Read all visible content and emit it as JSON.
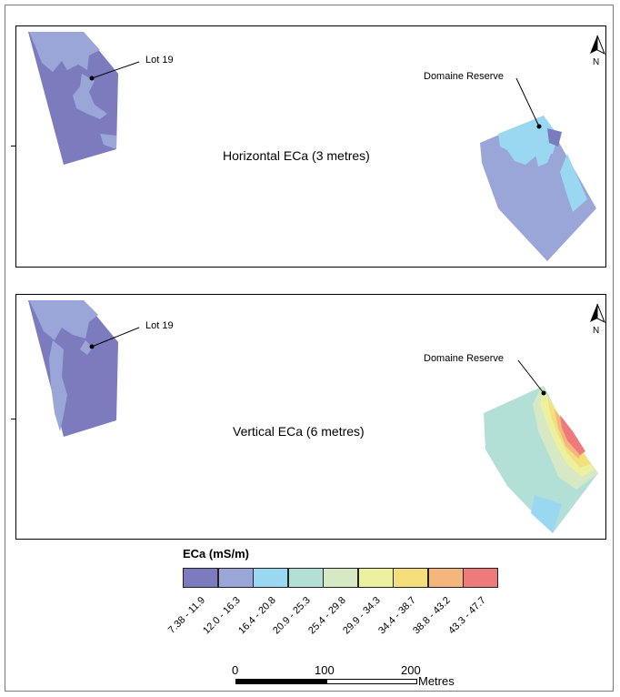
{
  "panels": [
    {
      "title": "Horizontal ECa (3 metres)",
      "lot_label": "Lot 19",
      "reserve_label": "Domaine Reserve",
      "north_label": "N"
    },
    {
      "title": "Vertical ECa (6 metres)",
      "lot_label": "Lot 19",
      "reserve_label": "Domaine Reserve",
      "north_label": "N"
    }
  ],
  "legend": {
    "title": "ECa (mS/m)",
    "classes": [
      {
        "label": "7.38 - 11.9",
        "color": "#7b7bbd"
      },
      {
        "label": "12.0 - 16.3",
        "color": "#9aa6d8"
      },
      {
        "label": "16.4 - 20.8",
        "color": "#9ad8f2"
      },
      {
        "label": "20.9 - 25.3",
        "color": "#b2dfd6"
      },
      {
        "label": "25.4 - 29.8",
        "color": "#d7e8c4"
      },
      {
        "label": "29.9 - 34.3",
        "color": "#ecf1a0"
      },
      {
        "label": "34.4 - 38.7",
        "color": "#f4df7c"
      },
      {
        "label": "38.8 - 43.2",
        "color": "#f4b67d"
      },
      {
        "label": "43.3 - 47.7",
        "color": "#ee7a7c"
      }
    ]
  },
  "scale_bar": {
    "ticks": [
      "0",
      "100",
      "200"
    ],
    "unit": "Metres"
  }
}
